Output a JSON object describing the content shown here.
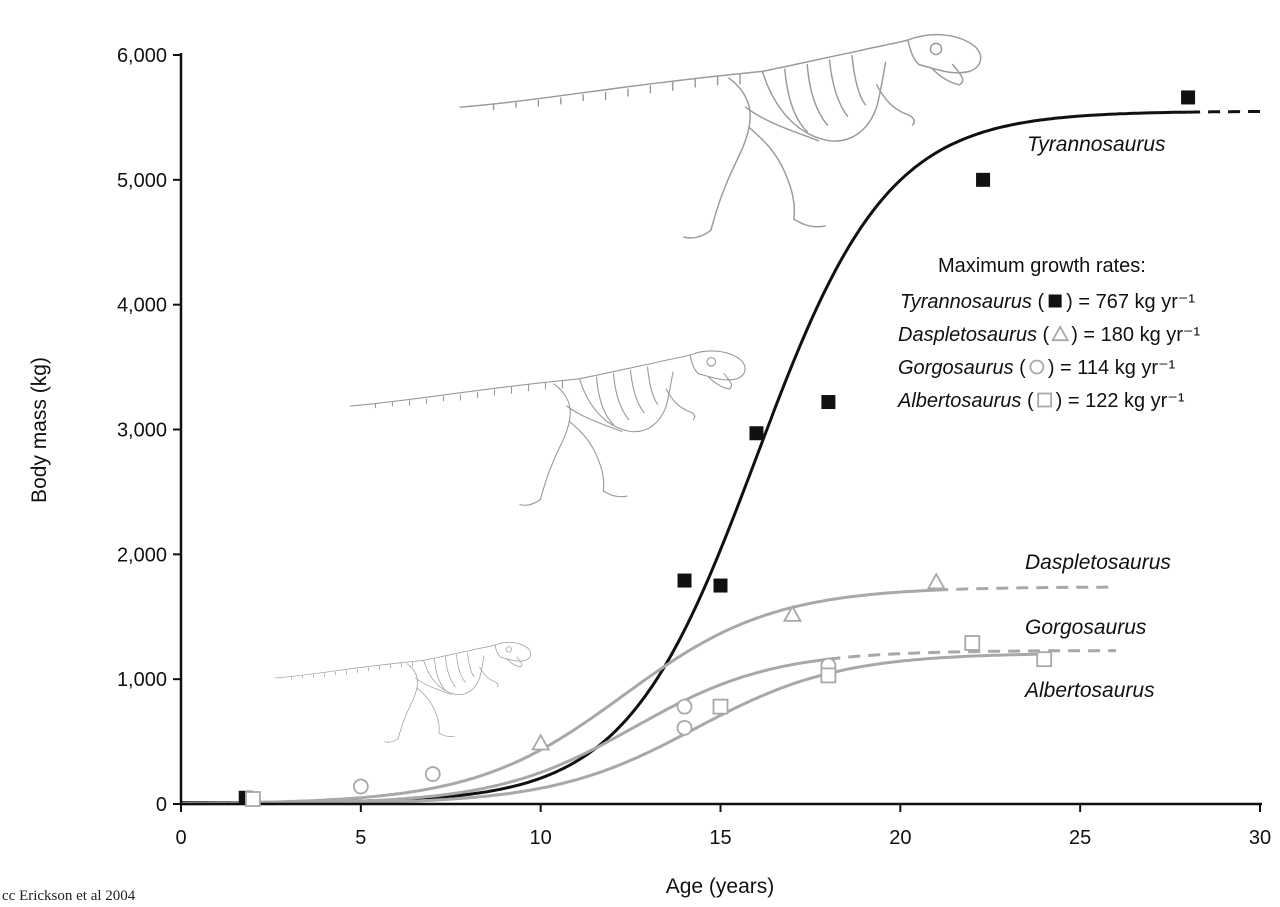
{
  "chart_data": {
    "type": "scatter",
    "title": "",
    "xlabel": "Age (years)",
    "ylabel": "Body mass (kg)",
    "xlim": [
      0,
      30
    ],
    "ylim": [
      0,
      6000
    ],
    "xticks": [
      "0",
      "5",
      "10",
      "15",
      "20",
      "25",
      "30"
    ],
    "yticks": [
      "0",
      "1,000",
      "2,000",
      "3,000",
      "4,000",
      "5,000",
      "6,000"
    ],
    "grid": false,
    "series": [
      {
        "name": "Tyrannosaurus",
        "marker": "square-filled",
        "color": "#111111",
        "points": [
          [
            1.8,
            50
          ],
          [
            14,
            1790
          ],
          [
            15,
            1750
          ],
          [
            16,
            2970
          ],
          [
            18,
            3220
          ],
          [
            22.3,
            5000
          ],
          [
            28,
            5660
          ]
        ]
      },
      {
        "name": "Daspletosaurus",
        "marker": "triangle-open",
        "color": "#a8a8a8",
        "points": [
          [
            10,
            490
          ],
          [
            17,
            1520
          ],
          [
            21,
            1780
          ]
        ]
      },
      {
        "name": "Gorgosaurus",
        "marker": "circle-open",
        "color": "#a8a8a8",
        "points": [
          [
            5,
            140
          ],
          [
            7,
            240
          ],
          [
            14,
            780
          ],
          [
            14,
            610
          ],
          [
            18,
            1110
          ]
        ]
      },
      {
        "name": "Albertosaurus",
        "marker": "square-open",
        "color": "#a8a8a8",
        "points": [
          [
            2,
            40
          ],
          [
            15,
            780
          ],
          [
            18,
            1030
          ],
          [
            22,
            1290
          ],
          [
            24,
            1160
          ]
        ]
      }
    ],
    "annotation": {
      "heading": "Maximum growth rates:",
      "rows": [
        {
          "name": "Tyrannosaurus",
          "marker": "square-filled",
          "open": " (",
          "close": ") = 767 kg yr⁻¹"
        },
        {
          "name": "Daspletosaurus",
          "marker": "triangle-open",
          "open": " (",
          "close": ") = 180 kg yr⁻¹"
        },
        {
          "name": "Gorgosaurus",
          "marker": "circle-open",
          "open": " (",
          "close": ") = 114 kg yr⁻¹"
        },
        {
          "name": "Albertosaurus",
          "marker": "square-open",
          "open": " (",
          "close": ") = 122 kg yr⁻¹"
        }
      ]
    },
    "credit": "cc Erickson et al 2004"
  },
  "colors": {
    "axis": "#111111",
    "tyrannosaurus_curve": "#111111",
    "other_curves": "#a8a8a8",
    "marker_tint": "#7f93a0"
  }
}
